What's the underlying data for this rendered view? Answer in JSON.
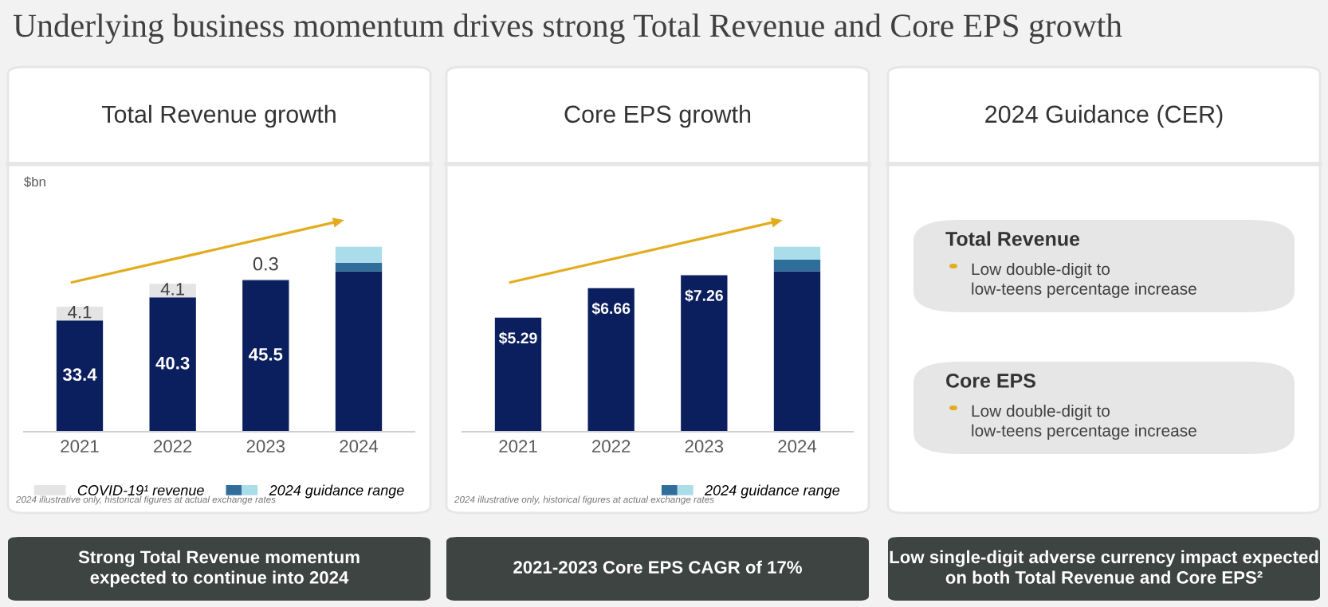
{
  "chart_data": [
    {
      "type": "bar",
      "title": "Total Revenue growth",
      "ylabel": "$bn",
      "stacked": true,
      "categories": [
        "2021",
        "2022",
        "2023",
        "2024"
      ],
      "series": [
        {
          "color": "#0b1f5e",
          "values": [
            33.4,
            40.3,
            45.5,
            48.1
          ],
          "value_labels": [
            "33.4",
            "40.3",
            "45.5",
            null
          ]
        },
        {
          "name": "COVID-19¹ revenue",
          "color": "#e4e4e4",
          "values": [
            4.1,
            4.1,
            0.3,
            null
          ],
          "value_labels": [
            "4.1",
            "4.1",
            "0.3",
            null
          ]
        },
        {
          "name": "2024 guidance range",
          "color": "#2f6e9a",
          "values": [
            null,
            null,
            null,
            2.6
          ]
        },
        {
          "color": "#a9dde9",
          "values": [
            null,
            null,
            null,
            4.8
          ]
        }
      ],
      "legend": "bottom",
      "grid": false,
      "annotations": [
        "Underlying business momentum drives strong Total Revenue and Core EPS growth",
        "2024 illustrative only, historical figures at actual exchange rates",
        "Strong Total Revenue momentum\nexpected to continue into 2024"
      ]
    },
    {
      "type": "bar",
      "title": "Core EPS growth",
      "stacked": true,
      "categories": [
        "2021",
        "2022",
        "2023",
        "2024"
      ],
      "series": [
        {
          "color": "#0b1f5e",
          "values": [
            5.29,
            6.66,
            7.26,
            7.44
          ],
          "value_labels": [
            "$5.29",
            "$6.66",
            "$7.26",
            null
          ]
        },
        {
          "name": "2024 guidance range",
          "color": "#2f6e9a",
          "values": [
            null,
            null,
            null,
            0.54
          ]
        },
        {
          "color": "#a9dde9",
          "values": [
            null,
            null,
            null,
            0.6
          ]
        }
      ],
      "legend": "bottom right",
      "grid": false,
      "annotations": [
        "2024 illustrative only, historical figures at actual exchange rates",
        "2021-2023 Core EPS CAGR of 17%"
      ]
    },
    {
      "type": "other",
      "title": "2024 Guidance (CER)",
      "annotations": [
        "Total Revenue",
        "Low double-digit to\nlow-teens percentage increase",
        "Core EPS",
        "Low double-digit to\nlow-teens percentage increase",
        "Low single-digit adverse currency impact expected\non both Total Revenue and Core EPS²"
      ]
    }
  ]
}
